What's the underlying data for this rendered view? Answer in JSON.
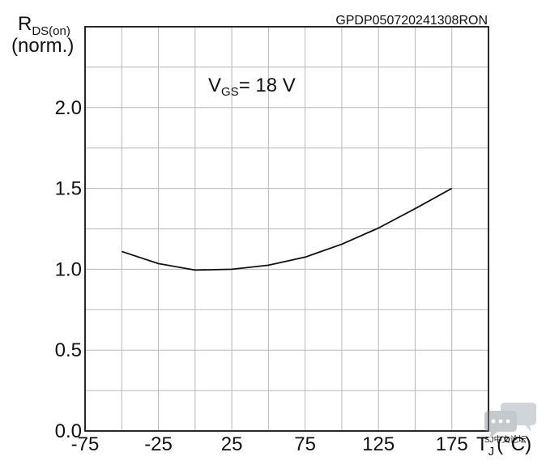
{
  "chart_data": {
    "type": "line",
    "code": "GPDP050720241308RON",
    "ylabel": {
      "symbol": "R",
      "subscript": "DS(on)",
      "unit": "(norm.)"
    },
    "xlabel": {
      "symbol": "T",
      "subscript": "J",
      "unit": "(°C)"
    },
    "condition": {
      "symbol": "V",
      "subscript": "GS",
      "value": "= 18 V"
    },
    "xlim": [
      -75,
      200
    ],
    "ylim": [
      0.0,
      2.5
    ],
    "x_ticks": [
      -75,
      -25,
      25,
      75,
      125,
      175
    ],
    "x_tick_labels": [
      "-75",
      "-25",
      "25",
      "75",
      "125",
      "175"
    ],
    "y_ticks": [
      0.0,
      0.5,
      1.0,
      1.5,
      2.0
    ],
    "y_tick_labels": [
      "0.0",
      "0.5",
      "1.0",
      "1.5",
      "2.0"
    ],
    "grid": true,
    "series": [
      {
        "x": [
          -50,
          -25,
          0,
          25,
          50,
          75,
          100,
          125,
          150,
          175
        ],
        "y": [
          1.11,
          1.035,
          0.995,
          1.0,
          1.025,
          1.075,
          1.155,
          1.255,
          1.375,
          1.5
        ]
      }
    ],
    "colors": {
      "line": "#111111",
      "grid": "#b8b8b8",
      "axis": "#111111"
    }
  },
  "watermark": {
    "icon": "chat-bubble-icon",
    "text": "SJ中文论坛"
  }
}
